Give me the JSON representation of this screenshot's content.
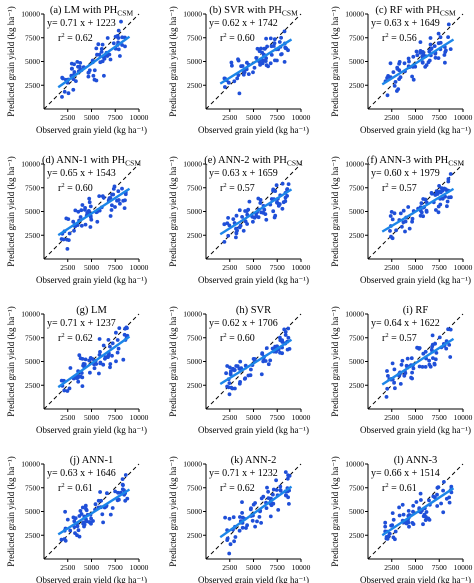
{
  "figure": {
    "xlabel": "Observed grain yield (kg ha⁻¹)",
    "ylabel": "Predicted grain yield (kg ha⁻¹)",
    "colors": {
      "points": "#1f4fd8",
      "fit_line": "#1c86e8",
      "identity_line": "#000000"
    }
  },
  "chart_data": [
    {
      "type": "scatter",
      "title": "(a) LM with PH",
      "title_sub": "CSM",
      "equation": "y= 0.71 x + 1223",
      "r2_label": "r",
      "r2_value": " = 0.62",
      "slope": 0.71,
      "intercept": 1223,
      "r2": 0.62,
      "xlim": [
        0,
        10000
      ],
      "ylim": [
        0,
        10000
      ],
      "xticks": [
        "2500",
        "5000",
        "7500",
        "10000"
      ],
      "yticks": [
        "2500",
        "5000",
        "7500",
        "10000"
      ],
      "identity_line": true,
      "fit_x": [
        1500,
        9000
      ]
    },
    {
      "type": "scatter",
      "title": "(b) SVR with PH",
      "title_sub": "CSM",
      "equation": "y= 0.62 x + 1742",
      "r2_label": "r",
      "r2_value": " = 0.60",
      "slope": 0.62,
      "intercept": 1742,
      "r2": 0.6,
      "xlim": [
        0,
        10000
      ],
      "ylim": [
        0,
        10000
      ],
      "xticks": [
        "2500",
        "5000",
        "7500",
        "10000"
      ],
      "yticks": [
        "2500",
        "5000",
        "7500",
        "10000"
      ],
      "identity_line": true,
      "fit_x": [
        1500,
        9000
      ]
    },
    {
      "type": "scatter",
      "title": "(c) RF with PH",
      "title_sub": "CSM",
      "equation": "y= 0.63 x + 1649",
      "r2_label": "r",
      "r2_value": " = 0.56",
      "slope": 0.63,
      "intercept": 1649,
      "r2": 0.56,
      "xlim": [
        0,
        10000
      ],
      "ylim": [
        0,
        10000
      ],
      "xticks": [
        "2500",
        "5000",
        "7500",
        "10000"
      ],
      "yticks": [
        "2500",
        "5000",
        "7500",
        "10000"
      ],
      "identity_line": true,
      "fit_x": [
        1500,
        9000
      ]
    },
    {
      "type": "scatter",
      "title": "(d) ANN-1 with PH",
      "title_sub": "CSM",
      "equation": "y= 0.65 x + 1543",
      "r2_label": "r",
      "r2_value": " = 0.60",
      "slope": 0.65,
      "intercept": 1543,
      "r2": 0.6,
      "xlim": [
        0,
        10000
      ],
      "ylim": [
        0,
        10000
      ],
      "xticks": [
        "2500",
        "5000",
        "7500",
        "10000"
      ],
      "yticks": [
        "2500",
        "5000",
        "7500",
        "10000"
      ],
      "identity_line": true,
      "fit_x": [
        1500,
        9000
      ]
    },
    {
      "type": "scatter",
      "title": "(e) ANN-2 with PH",
      "title_sub": "CSM",
      "equation": "y= 0.63 x + 1659",
      "r2_label": "r",
      "r2_value": " = 0.57",
      "slope": 0.63,
      "intercept": 1659,
      "r2": 0.57,
      "xlim": [
        0,
        10000
      ],
      "ylim": [
        0,
        10000
      ],
      "xticks": [
        "2500",
        "5000",
        "7500",
        "10000"
      ],
      "yticks": [
        "2500",
        "5000",
        "7500",
        "10000"
      ],
      "identity_line": true,
      "fit_x": [
        1500,
        9000
      ]
    },
    {
      "type": "scatter",
      "title": "(f) ANN-3 with PH",
      "title_sub": "CSM",
      "equation": "y= 0.60 x + 1979",
      "r2_label": "r",
      "r2_value": " = 0.57",
      "slope": 0.6,
      "intercept": 1979,
      "r2": 0.57,
      "xlim": [
        0,
        10000
      ],
      "ylim": [
        0,
        10000
      ],
      "xticks": [
        "2500",
        "5000",
        "7500",
        "10000"
      ],
      "yticks": [
        "2500",
        "5000",
        "7500",
        "10000"
      ],
      "identity_line": true,
      "fit_x": [
        1500,
        9000
      ]
    },
    {
      "type": "scatter",
      "title": "(g) LM",
      "title_sub": "",
      "equation": "y= 0.71 x + 1237",
      "r2_label": "r",
      "r2_value": " = 0.62",
      "slope": 0.71,
      "intercept": 1237,
      "r2": 0.62,
      "xlim": [
        0,
        10000
      ],
      "ylim": [
        0,
        10000
      ],
      "xticks": [
        "2500",
        "5000",
        "7500",
        "10000"
      ],
      "yticks": [
        "2500",
        "5000",
        "7500",
        "10000"
      ],
      "identity_line": true,
      "fit_x": [
        1500,
        9000
      ]
    },
    {
      "type": "scatter",
      "title": "(h) SVR",
      "title_sub": "",
      "equation": "y= 0.62 x + 1706",
      "r2_label": "r",
      "r2_value": " = 0.60",
      "slope": 0.62,
      "intercept": 1706,
      "r2": 0.6,
      "xlim": [
        0,
        10000
      ],
      "ylim": [
        0,
        10000
      ],
      "xticks": [
        "2500",
        "5000",
        "7500",
        "10000"
      ],
      "yticks": [
        "2500",
        "5000",
        "7500",
        "10000"
      ],
      "identity_line": true,
      "fit_x": [
        1500,
        9000
      ]
    },
    {
      "type": "scatter",
      "title": "(i) RF",
      "title_sub": "",
      "equation": "y= 0.64 x + 1622",
      "r2_label": "r",
      "r2_value": " = 0.57",
      "slope": 0.64,
      "intercept": 1622,
      "r2": 0.57,
      "xlim": [
        0,
        10000
      ],
      "ylim": [
        0,
        10000
      ],
      "xticks": [
        "2500",
        "5000",
        "7500",
        "10000"
      ],
      "yticks": [
        "2500",
        "5000",
        "7500",
        "10000"
      ],
      "identity_line": true,
      "fit_x": [
        1500,
        9000
      ]
    },
    {
      "type": "scatter",
      "title": "(j) ANN-1",
      "title_sub": "",
      "equation": "y= 0.63 x + 1646",
      "r2_label": "r",
      "r2_value": " = 0.61",
      "slope": 0.63,
      "intercept": 1646,
      "r2": 0.61,
      "xlim": [
        0,
        10000
      ],
      "ylim": [
        0,
        10000
      ],
      "xticks": [
        "2500",
        "5000",
        "7500",
        "10000"
      ],
      "yticks": [
        "2500",
        "5000",
        "7500",
        "10000"
      ],
      "identity_line": true,
      "fit_x": [
        1500,
        9000
      ]
    },
    {
      "type": "scatter",
      "title": "(k) ANN-2",
      "title_sub": "",
      "equation": "y= 0.71 x + 1232",
      "r2_label": "r",
      "r2_value": " = 0.62",
      "slope": 0.71,
      "intercept": 1232,
      "r2": 0.62,
      "xlim": [
        0,
        10000
      ],
      "ylim": [
        0,
        10000
      ],
      "xticks": [
        "2500",
        "5000",
        "7500",
        "10000"
      ],
      "yticks": [
        "2500",
        "5000",
        "7500",
        "10000"
      ],
      "identity_line": true,
      "fit_x": [
        1500,
        9000
      ]
    },
    {
      "type": "scatter",
      "title": "(l) ANN-3",
      "title_sub": "",
      "equation": "y= 0.66 x + 1514",
      "r2_label": "r",
      "r2_value": " = 0.61",
      "slope": 0.66,
      "intercept": 1514,
      "r2": 0.61,
      "xlim": [
        0,
        10000
      ],
      "ylim": [
        0,
        10000
      ],
      "xticks": [
        "2500",
        "5000",
        "7500",
        "10000"
      ],
      "yticks": [
        "2500",
        "5000",
        "7500",
        "10000"
      ],
      "identity_line": true,
      "fit_x": [
        1500,
        9000
      ]
    }
  ]
}
